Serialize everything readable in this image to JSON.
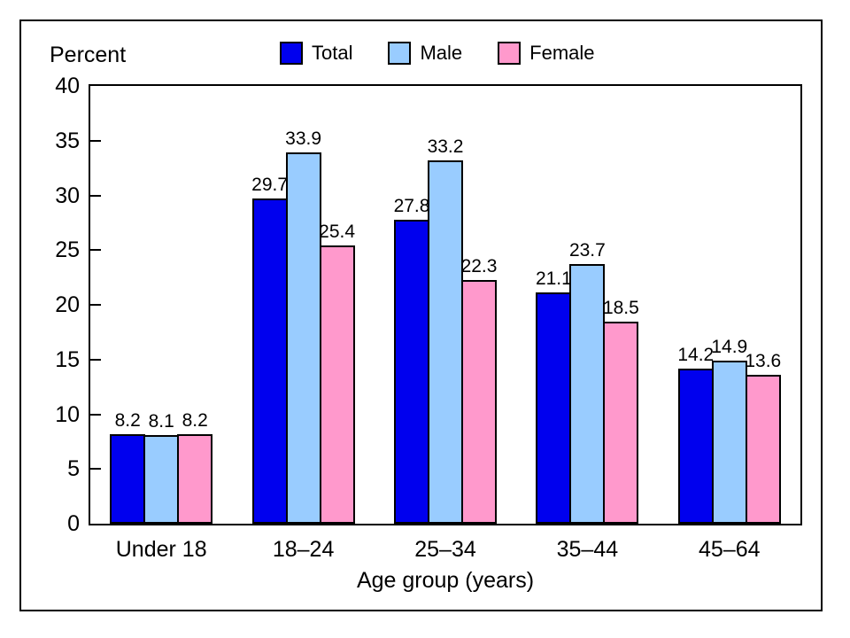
{
  "figure": {
    "background_color": "#FFFFFF",
    "frame_border_color": "#000000"
  },
  "chart_data": {
    "type": "bar",
    "title": "",
    "axis_unit_label": "Percent",
    "xlabel": "Age group (years)",
    "ylabel": "Percent",
    "categories": [
      "Under 18",
      "18–24",
      "25–34",
      "35–44",
      "45–64"
    ],
    "series": [
      {
        "name": "Total",
        "color": "#0000EE",
        "values": [
          8.2,
          29.7,
          27.8,
          21.1,
          14.2
        ]
      },
      {
        "name": "Male",
        "color": "#99CCFF",
        "values": [
          8.1,
          33.9,
          33.2,
          23.7,
          14.9
        ]
      },
      {
        "name": "Female",
        "color": "#FF99CC",
        "values": [
          8.2,
          25.4,
          22.3,
          18.5,
          13.6
        ]
      }
    ],
    "ylim": [
      0,
      40
    ],
    "yticks": [
      0,
      5,
      10,
      15,
      20,
      25,
      30,
      35,
      40
    ],
    "grid": false,
    "legend_position": "top",
    "value_labels": true,
    "bar_outline_color": "#000000"
  }
}
